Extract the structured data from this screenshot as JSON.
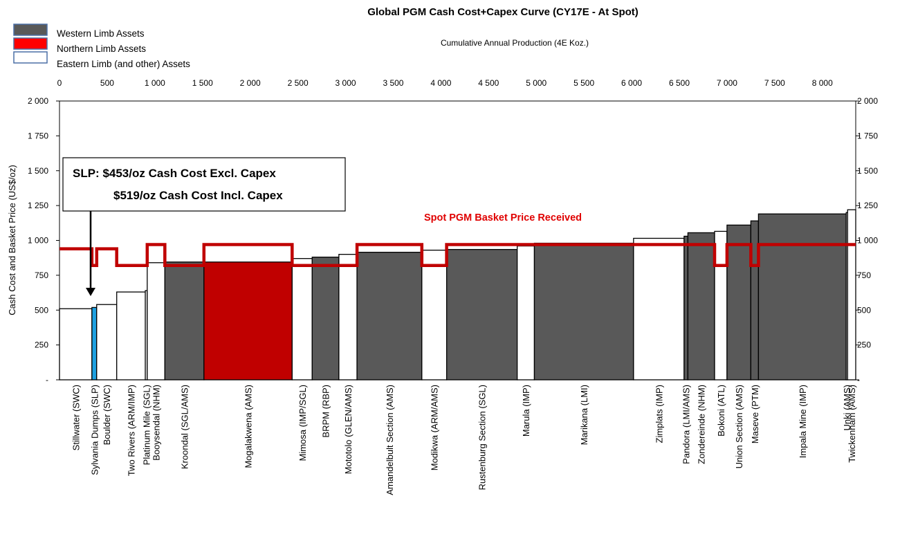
{
  "chart_data": {
    "type": "bar",
    "title": "Global PGM Cash Cost+Capex Curve (CY17E - At Spot)",
    "x_axis_title": "Cumulative Annual Production (4E Koz.)",
    "ylabel": "Cash Cost and Basket Price  (US$/oz)",
    "xlim": [
      0,
      8350
    ],
    "ylim": [
      0,
      2000
    ],
    "x_ticks": [
      0,
      500,
      1000,
      1500,
      2000,
      2500,
      3000,
      3500,
      4000,
      4500,
      5000,
      5500,
      6000,
      6500,
      7000,
      7500,
      8000
    ],
    "x_tick_labels": [
      "0",
      "500",
      "1 000",
      "1 500",
      "2 000",
      "2 500",
      "3 000",
      "3 500",
      "4 000",
      "4 500",
      "5 000",
      "5 500",
      "6 000",
      "6 500",
      "7 000",
      "7 500",
      "8 000"
    ],
    "y_ticks": [
      0,
      250,
      500,
      750,
      1000,
      1250,
      1500,
      1750,
      2000
    ],
    "y_tick_labels": [
      "-",
      "250",
      "500",
      "750",
      "1 000",
      "1 250",
      "1 500",
      "1 750",
      "2 000"
    ],
    "legend": [
      {
        "label": "Western Limb Assets",
        "color": "#595959"
      },
      {
        "label": "Northern Limb Assets",
        "color": "#ff0000"
      },
      {
        "label": "Eastern Limb (and other) Assets",
        "color": "#ffffff"
      }
    ],
    "legend_position": "top-left",
    "callout_line1": "SLP:  $453/oz Cash Cost Excl. Capex",
    "callout_line2": "$519/oz Cash Cost Incl. Capex",
    "spot_label": "Spot PGM Basket Price Received",
    "colors": {
      "western": "#595959",
      "northern": "#c00000",
      "eastern": "#ffffff",
      "sylvania": "#1ea0e0",
      "spot": "#c00000"
    },
    "bars": [
      {
        "name": "Stillwater (SWC)",
        "x0": 0,
        "x1": 340,
        "value": 510,
        "group": "eastern"
      },
      {
        "name": "Sylvania Dumps (SLP)",
        "x0": 340,
        "x1": 390,
        "value": 519,
        "group": "sylvania"
      },
      {
        "name": "Boulder (SWC)",
        "x0": 390,
        "x1": 600,
        "value": 540,
        "group": "eastern"
      },
      {
        "name": "Two Rivers (ARM/IMP)",
        "x0": 600,
        "x1": 900,
        "value": 630,
        "group": "eastern"
      },
      {
        "name": "Platinum Mile (SGL)",
        "x0": 900,
        "x1": 920,
        "value": 640,
        "group": "eastern"
      },
      {
        "name": "Booysendal (NHM)",
        "x0": 920,
        "x1": 1105,
        "value": 840,
        "group": "eastern"
      },
      {
        "name": "Kroondal (SGL/AMS)",
        "x0": 1105,
        "x1": 1515,
        "value": 845,
        "group": "western"
      },
      {
        "name": "Mogalakwena (AMS)",
        "x0": 1515,
        "x1": 2440,
        "value": 845,
        "group": "northern"
      },
      {
        "name": "Mimosa (IMP/SGL)",
        "x0": 2440,
        "x1": 2650,
        "value": 870,
        "group": "eastern"
      },
      {
        "name": "BRPM (RBP)",
        "x0": 2650,
        "x1": 2930,
        "value": 880,
        "group": "western"
      },
      {
        "name": "Mototolo (GLEN/AMS)",
        "x0": 2930,
        "x1": 3120,
        "value": 900,
        "group": "eastern"
      },
      {
        "name": "Amandelbult Section (AMS)",
        "x0": 3120,
        "x1": 3800,
        "value": 915,
        "group": "western"
      },
      {
        "name": "Modikwa (ARM/AMS)",
        "x0": 3800,
        "x1": 4060,
        "value": 930,
        "group": "eastern"
      },
      {
        "name": "Rustenburg Section (SGL)",
        "x0": 4060,
        "x1": 4800,
        "value": 935,
        "group": "western"
      },
      {
        "name": "Marula (IMP)",
        "x0": 4800,
        "x1": 4980,
        "value": 960,
        "group": "eastern"
      },
      {
        "name": "Marikana (LMI)",
        "x0": 4980,
        "x1": 6020,
        "value": 980,
        "group": "western"
      },
      {
        "name": "Zimplats (IMP)",
        "x0": 6020,
        "x1": 6550,
        "value": 1015,
        "group": "eastern"
      },
      {
        "name": "Pandora (LMI/AMS)",
        "x0": 6550,
        "x1": 6590,
        "value": 1030,
        "group": "western"
      },
      {
        "name": "Zondereinde (NHM)",
        "x0": 6590,
        "x1": 6870,
        "value": 1055,
        "group": "western"
      },
      {
        "name": "Bokoni (ATL)",
        "x0": 6870,
        "x1": 7000,
        "value": 1065,
        "group": "eastern"
      },
      {
        "name": "Union Section (AMS)",
        "x0": 7000,
        "x1": 7250,
        "value": 1110,
        "group": "western"
      },
      {
        "name": "Maseve (PTM)",
        "x0": 7250,
        "x1": 7330,
        "value": 1140,
        "group": "western"
      },
      {
        "name": "Impala Mine (IMP)",
        "x0": 7330,
        "x1": 8250,
        "value": 1190,
        "group": "western"
      },
      {
        "name": "Unki (AMS)",
        "x0": 8250,
        "x1": 8265,
        "value": 1200,
        "group": "eastern"
      },
      {
        "name": "Twickenham (AMS)",
        "x0": 8265,
        "x1": 8350,
        "value": 1220,
        "group": "eastern"
      }
    ],
    "spot_price_line": [
      [
        0,
        940
      ],
      [
        340,
        940
      ],
      [
        340,
        820
      ],
      [
        390,
        820
      ],
      [
        390,
        940
      ],
      [
        600,
        940
      ],
      [
        600,
        820
      ],
      [
        920,
        820
      ],
      [
        920,
        970
      ],
      [
        1105,
        970
      ],
      [
        1105,
        820
      ],
      [
        1515,
        820
      ],
      [
        1515,
        970
      ],
      [
        2440,
        970
      ],
      [
        2440,
        820
      ],
      [
        3120,
        820
      ],
      [
        3120,
        970
      ],
      [
        3800,
        970
      ],
      [
        3800,
        820
      ],
      [
        4060,
        820
      ],
      [
        4060,
        970
      ],
      [
        6870,
        970
      ],
      [
        6870,
        820
      ],
      [
        7000,
        820
      ],
      [
        7000,
        970
      ],
      [
        7250,
        970
      ],
      [
        7250,
        820
      ],
      [
        7330,
        820
      ],
      [
        7330,
        970
      ],
      [
        8350,
        970
      ]
    ]
  }
}
